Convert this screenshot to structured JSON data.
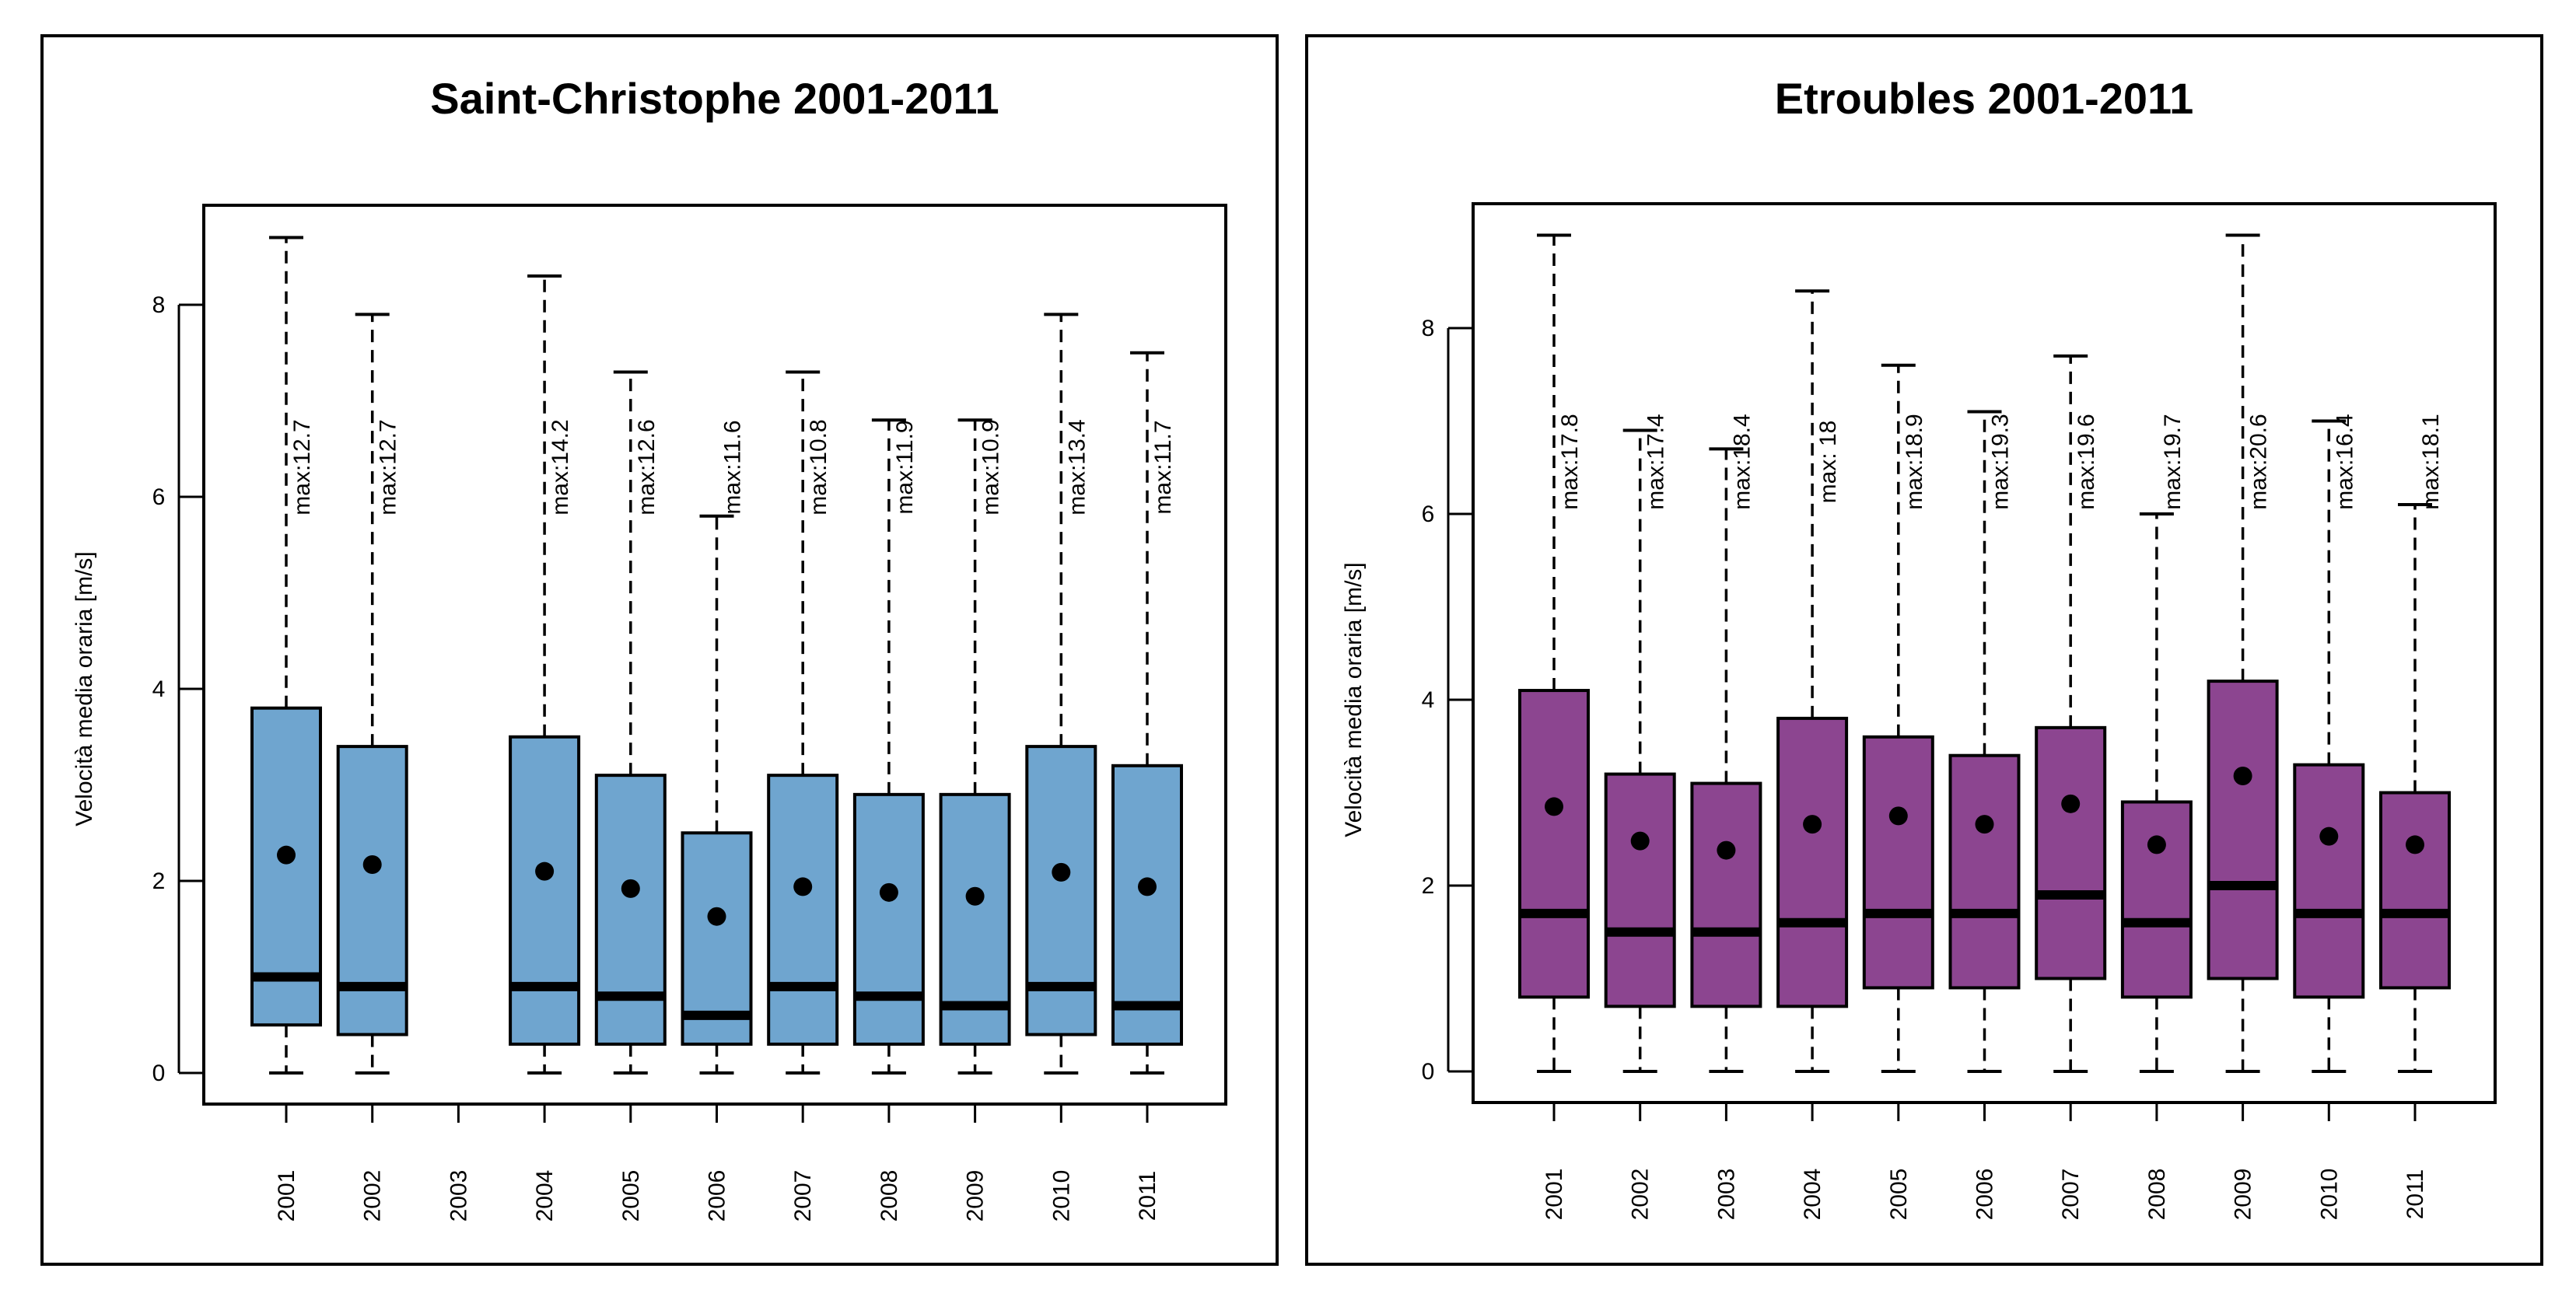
{
  "chart_data": [
    {
      "type": "boxplot",
      "title": "Saint-Christophe 2001-2011",
      "xlabel": "",
      "ylabel": "Velocità media oraria [m/s]",
      "ylim": [
        0,
        9
      ],
      "yticks": [
        0,
        2,
        4,
        6,
        8
      ],
      "categories": [
        "2001",
        "2002",
        "2003",
        "2004",
        "2005",
        "2006",
        "2007",
        "2008",
        "2009",
        "2010",
        "2011"
      ],
      "box_color": "#6fa5cf",
      "series": [
        {
          "year": "2001",
          "whisker_low": 0,
          "q1": 0.5,
          "median": 1.0,
          "q3": 3.8,
          "whisker_high": 8.7,
          "mean": 2.27,
          "max_label": "max:12.7"
        },
        {
          "year": "2002",
          "whisker_low": 0,
          "q1": 0.4,
          "median": 0.9,
          "q3": 3.4,
          "whisker_high": 7.9,
          "mean": 2.17,
          "max_label": "max:12.7"
        },
        {
          "year": "2003",
          "whisker_low": null,
          "q1": null,
          "median": null,
          "q3": null,
          "whisker_high": null,
          "mean": null,
          "max_label": ""
        },
        {
          "year": "2004",
          "whisker_low": 0,
          "q1": 0.3,
          "median": 0.9,
          "q3": 3.5,
          "whisker_high": 8.3,
          "mean": 2.1,
          "max_label": "max:14.2"
        },
        {
          "year": "2005",
          "whisker_low": 0,
          "q1": 0.3,
          "median": 0.8,
          "q3": 3.1,
          "whisker_high": 7.3,
          "mean": 1.92,
          "max_label": "max:12.6"
        },
        {
          "year": "2006",
          "whisker_low": 0,
          "q1": 0.3,
          "median": 0.6,
          "q3": 2.5,
          "whisker_high": 5.8,
          "mean": 1.63,
          "max_label": "max:11.6"
        },
        {
          "year": "2007",
          "whisker_low": 0,
          "q1": 0.3,
          "median": 0.9,
          "q3": 3.1,
          "whisker_high": 7.3,
          "mean": 1.94,
          "max_label": "max:10.8"
        },
        {
          "year": "2008",
          "whisker_low": 0,
          "q1": 0.3,
          "median": 0.8,
          "q3": 2.9,
          "whisker_high": 6.8,
          "mean": 1.88,
          "max_label": "max:11.9"
        },
        {
          "year": "2009",
          "whisker_low": 0,
          "q1": 0.3,
          "median": 0.7,
          "q3": 2.9,
          "whisker_high": 6.8,
          "mean": 1.84,
          "max_label": "max:10.9"
        },
        {
          "year": "2010",
          "whisker_low": 0,
          "q1": 0.4,
          "median": 0.9,
          "q3": 3.4,
          "whisker_high": 7.9,
          "mean": 2.09,
          "max_label": "max:13.4"
        },
        {
          "year": "2011",
          "whisker_low": 0,
          "q1": 0.3,
          "median": 0.7,
          "q3": 3.2,
          "whisker_high": 7.5,
          "mean": 1.94,
          "max_label": "max:11.7"
        }
      ]
    },
    {
      "type": "boxplot",
      "title": "Etroubles 2001-2011",
      "xlabel": "",
      "ylabel": "Velocità media oraria [m/s]",
      "ylim": [
        0,
        9
      ],
      "yticks": [
        0,
        2,
        4,
        6,
        8
      ],
      "categories": [
        "2001",
        "2002",
        "2003",
        "2004",
        "2005",
        "2006",
        "2007",
        "2008",
        "2009",
        "2010",
        "2011"
      ],
      "box_color": "#8c4590",
      "series": [
        {
          "year": "2001",
          "whisker_low": 0,
          "q1": 0.8,
          "median": 1.7,
          "q3": 4.1,
          "whisker_high": 9.0,
          "mean": 2.85,
          "max_label": "max:17.8"
        },
        {
          "year": "2002",
          "whisker_low": 0,
          "q1": 0.7,
          "median": 1.5,
          "q3": 3.2,
          "whisker_high": 6.9,
          "mean": 2.48,
          "max_label": "max:17.4"
        },
        {
          "year": "2003",
          "whisker_low": 0,
          "q1": 0.7,
          "median": 1.5,
          "q3": 3.1,
          "whisker_high": 6.7,
          "mean": 2.38,
          "max_label": "max:18.4"
        },
        {
          "year": "2004",
          "whisker_low": 0,
          "q1": 0.7,
          "median": 1.6,
          "q3": 3.8,
          "whisker_high": 8.4,
          "mean": 2.66,
          "max_label": "max:  18"
        },
        {
          "year": "2005",
          "whisker_low": 0,
          "q1": 0.9,
          "median": 1.7,
          "q3": 3.6,
          "whisker_high": 7.6,
          "mean": 2.75,
          "max_label": "max:18.9"
        },
        {
          "year": "2006",
          "whisker_low": 0,
          "q1": 0.9,
          "median": 1.7,
          "q3": 3.4,
          "whisker_high": 7.1,
          "mean": 2.66,
          "max_label": "max:19.3"
        },
        {
          "year": "2007",
          "whisker_low": 0,
          "q1": 1.0,
          "median": 1.9,
          "q3": 3.7,
          "whisker_high": 7.7,
          "mean": 2.88,
          "max_label": "max:19.6"
        },
        {
          "year": "2008",
          "whisker_low": 0,
          "q1": 0.8,
          "median": 1.6,
          "q3": 2.9,
          "whisker_high": 6.0,
          "mean": 2.44,
          "max_label": "max:19.7"
        },
        {
          "year": "2009",
          "whisker_low": 0,
          "q1": 1.0,
          "median": 2.0,
          "q3": 4.2,
          "whisker_high": 9.0,
          "mean": 3.18,
          "max_label": "max:20.6"
        },
        {
          "year": "2010",
          "whisker_low": 0,
          "q1": 0.8,
          "median": 1.7,
          "q3": 3.3,
          "whisker_high": 7.0,
          "mean": 2.53,
          "max_label": "max:16.4"
        },
        {
          "year": "2011",
          "whisker_low": 0,
          "q1": 0.9,
          "median": 1.7,
          "q3": 3.0,
          "whisker_high": 6.1,
          "mean": 2.44,
          "max_label": "max:18.1"
        }
      ]
    }
  ]
}
